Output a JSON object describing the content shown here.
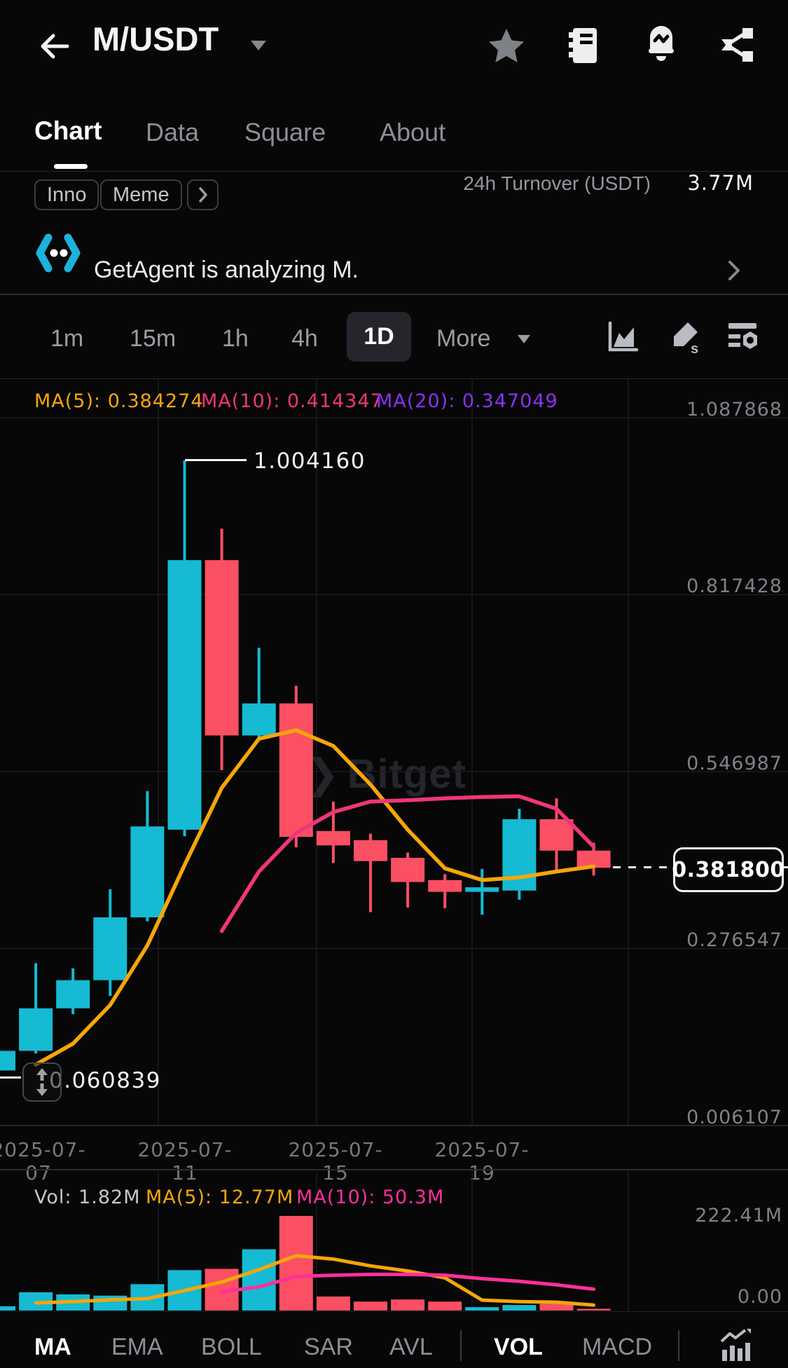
{
  "colors": {
    "up": "#16bad2",
    "down": "#fb4f63",
    "ma5": "#f6a60a",
    "ma10": "#f0357b",
    "ma20": "#8b31f4",
    "vol_ma5": "#f6a60a",
    "vol_ma10": "#ff2f9c",
    "accent_cyan": "#1cb2dd",
    "grid": "#1a1b1f",
    "axis_text": "#7e8187",
    "text_gray": "#8c8f96"
  },
  "app_bar": {
    "title": "M/USDT"
  },
  "nav_tabs": {
    "items": [
      {
        "label": "Chart"
      },
      {
        "label": "Data"
      },
      {
        "label": "Square"
      },
      {
        "label": "About"
      }
    ]
  },
  "market_info": {
    "chips": [
      {
        "label": "Inno"
      },
      {
        "label": "Meme"
      }
    ],
    "turnover_label": "24h Turnover (USDT)",
    "turnover_value": "3.77M"
  },
  "agent_banner": {
    "message": "GetAgent is analyzing M."
  },
  "toolbar": {
    "timeframes": [
      {
        "label": "1m"
      },
      {
        "label": "15m"
      },
      {
        "label": "1h"
      },
      {
        "label": "4h"
      },
      {
        "label": "1D"
      }
    ],
    "active_timeframe": "1D",
    "more_label": "More"
  },
  "price_pane": {
    "ma_labels": [
      {
        "text": "MA(5): 0.384274"
      },
      {
        "text": "MA(10): 0.414347"
      },
      {
        "text": "MA(20): 0.347049"
      }
    ],
    "y_ticks": [
      {
        "label": "1.087868"
      },
      {
        "label": "0.817428"
      },
      {
        "label": "0.546987"
      },
      {
        "label": "0.276547"
      },
      {
        "label": "0.006107"
      }
    ],
    "x_ticks": [
      {
        "label": "2025-07-07"
      },
      {
        "label": "2025-07-11"
      },
      {
        "label": "2025-07-15"
      },
      {
        "label": "2025-07-19"
      }
    ],
    "high_label": "1.004160",
    "low_label": "0.060839",
    "last_price": "0.381800",
    "watermark": "Bitget",
    "watermark_logo": "❯"
  },
  "volume_pane": {
    "labels": [
      {
        "text": "Vol: 1.82M"
      },
      {
        "text": "MA(5): 12.77M"
      },
      {
        "text": "MA(10): 50.3M"
      }
    ],
    "y_max_label": "222.41M",
    "y_min_label": "0.00"
  },
  "indicator_bar": {
    "main": [
      {
        "label": "MA"
      },
      {
        "label": "EMA"
      },
      {
        "label": "BOLL"
      },
      {
        "label": "SAR"
      },
      {
        "label": "AVL"
      }
    ],
    "sub": [
      {
        "label": "VOL"
      },
      {
        "label": "MACD"
      }
    ],
    "active_main": "MA",
    "active_sub": "VOL"
  },
  "chart_data": {
    "type": "candlestick",
    "symbol": "M/USDT",
    "interval": "1D",
    "price_axis": {
      "ticks": [
        1.087868,
        0.817428,
        0.546987,
        0.276547,
        0.006107
      ]
    },
    "volume_axis": {
      "max": 222.41,
      "min": 0,
      "unit": "M"
    },
    "markers": {
      "high": 1.00416,
      "low": 0.060839,
      "last_price": 0.3818
    },
    "x_tick_dates": [
      "2025-07-07",
      "2025-07-11",
      "2025-07-15",
      "2025-07-19"
    ],
    "candles": [
      {
        "date": "2025-07-06",
        "o": 0.072,
        "h": 0.105,
        "l": 0.0608,
        "c": 0.102,
        "vol_m": 10
      },
      {
        "date": "2025-07-07",
        "o": 0.102,
        "h": 0.236,
        "l": 0.098,
        "c": 0.167,
        "vol_m": 43
      },
      {
        "date": "2025-07-08",
        "o": 0.167,
        "h": 0.228,
        "l": 0.158,
        "c": 0.21,
        "vol_m": 38
      },
      {
        "date": "2025-07-09",
        "o": 0.21,
        "h": 0.349,
        "l": 0.186,
        "c": 0.306,
        "vol_m": 35
      },
      {
        "date": "2025-07-10",
        "o": 0.306,
        "h": 0.499,
        "l": 0.3,
        "c": 0.445,
        "vol_m": 62
      },
      {
        "date": "2025-07-11",
        "o": 0.44,
        "h": 1.00416,
        "l": 0.43,
        "c": 0.852,
        "vol_m": 95
      },
      {
        "date": "2025-07-12",
        "o": 0.852,
        "h": 0.9,
        "l": 0.531,
        "c": 0.584,
        "vol_m": 98
      },
      {
        "date": "2025-07-13",
        "o": 0.584,
        "h": 0.718,
        "l": 0.578,
        "c": 0.633,
        "vol_m": 144
      },
      {
        "date": "2025-07-14",
        "o": 0.633,
        "h": 0.66,
        "l": 0.413,
        "c": 0.429,
        "vol_m": 222.41
      },
      {
        "date": "2025-07-15",
        "o": 0.438,
        "h": 0.483,
        "l": 0.389,
        "c": 0.416,
        "vol_m": 33
      },
      {
        "date": "2025-07-16",
        "o": 0.424,
        "h": 0.434,
        "l": 0.314,
        "c": 0.392,
        "vol_m": 21
      },
      {
        "date": "2025-07-17",
        "o": 0.397,
        "h": 0.405,
        "l": 0.321,
        "c": 0.36,
        "vol_m": 26
      },
      {
        "date": "2025-07-18",
        "o": 0.363,
        "h": 0.372,
        "l": 0.32,
        "c": 0.345,
        "vol_m": 21
      },
      {
        "date": "2025-07-19",
        "o": 0.345,
        "h": 0.38,
        "l": 0.31,
        "c": 0.352,
        "vol_m": 8
      },
      {
        "date": "2025-07-20",
        "o": 0.347,
        "h": 0.472,
        "l": 0.333,
        "c": 0.456,
        "vol_m": 13
      },
      {
        "date": "2025-07-21",
        "o": 0.456,
        "h": 0.488,
        "l": 0.376,
        "c": 0.408,
        "vol_m": 16
      },
      {
        "date": "2025-07-22",
        "o": 0.408,
        "h": 0.42,
        "l": 0.37,
        "c": 0.3818,
        "vol_m": 1.82
      }
    ],
    "overlays": {
      "price_ma5": {
        "period": 5,
        "current": 0.384274,
        "values": [
          null,
          0.081,
          0.113,
          0.172,
          0.263,
          0.386,
          0.504,
          0.579,
          0.592,
          0.568,
          0.509,
          0.44,
          0.381,
          0.363,
          0.367,
          0.376,
          0.384
        ]
      },
      "price_ma10": {
        "period": 10,
        "current": 0.414347,
        "values": [
          null,
          null,
          null,
          null,
          null,
          null,
          0.285,
          0.376,
          0.435,
          0.467,
          0.483,
          0.485,
          0.488,
          0.49,
          0.491,
          0.472,
          0.414
        ]
      },
      "price_ma20": {
        "period": 20,
        "current": 0.347049,
        "values": []
      },
      "vol_ma5": {
        "period": 5,
        "current": 12.77,
        "values": [
          null,
          18,
          21,
          25,
          28,
          47,
          67,
          96,
          129,
          121,
          105,
          93,
          77,
          24.5,
          21,
          19.6,
          12.77
        ]
      },
      "vol_ma10": {
        "period": 10,
        "current": 50.3,
        "values": [
          null,
          null,
          null,
          null,
          null,
          null,
          44,
          55.6,
          80,
          83,
          85,
          85,
          83,
          75,
          68.7,
          60.5,
          50.3
        ]
      }
    }
  }
}
